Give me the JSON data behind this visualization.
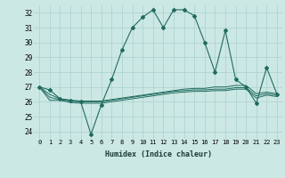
{
  "xlabel": "Humidex (Indice chaleur)",
  "background_color": "#cce8e4",
  "grid_color": "#aad0cc",
  "line_color": "#206b60",
  "xlim": [
    -0.5,
    23.5
  ],
  "ylim": [
    23.5,
    32.5
  ],
  "yticks": [
    24,
    25,
    26,
    27,
    28,
    29,
    30,
    31,
    32
  ],
  "xticks": [
    0,
    1,
    2,
    3,
    4,
    5,
    6,
    7,
    8,
    9,
    10,
    11,
    12,
    13,
    14,
    15,
    16,
    17,
    18,
    19,
    20,
    21,
    22,
    23
  ],
  "main_line": [
    27.0,
    26.8,
    26.2,
    26.1,
    26.0,
    23.8,
    25.8,
    27.5,
    29.5,
    31.0,
    31.7,
    32.2,
    31.0,
    32.2,
    32.2,
    31.8,
    30.0,
    28.0,
    30.8,
    27.5,
    27.0,
    25.9,
    28.3,
    26.5
  ],
  "line2": [
    27.0,
    26.5,
    26.2,
    26.1,
    26.05,
    26.05,
    26.05,
    26.15,
    26.25,
    26.35,
    26.45,
    26.55,
    26.65,
    26.75,
    26.85,
    26.9,
    26.9,
    27.0,
    27.0,
    27.1,
    27.1,
    26.55,
    26.65,
    26.55
  ],
  "line3": [
    27.0,
    26.3,
    26.15,
    26.05,
    26.0,
    26.0,
    26.0,
    26.1,
    26.2,
    26.3,
    26.4,
    26.5,
    26.6,
    26.7,
    26.75,
    26.8,
    26.8,
    26.85,
    26.85,
    26.95,
    26.95,
    26.4,
    26.55,
    26.45
  ],
  "line4": [
    27.0,
    26.1,
    26.1,
    25.95,
    25.9,
    25.9,
    25.9,
    26.0,
    26.1,
    26.2,
    26.3,
    26.4,
    26.5,
    26.6,
    26.65,
    26.7,
    26.7,
    26.75,
    26.75,
    26.85,
    26.85,
    26.25,
    26.45,
    26.35
  ]
}
